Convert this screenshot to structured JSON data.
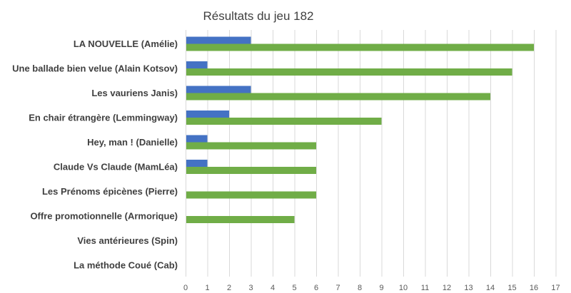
{
  "chart_data": {
    "type": "bar",
    "orientation": "horizontal",
    "title": "Résultats du jeu 182",
    "xlabel": "",
    "ylabel": "",
    "categories": [
      "LA NOUVELLE (Amélie)",
      "Une ballade bien velue (Alain Kotsov)",
      "Les vauriens Janis)",
      "En chair étrangère (Lemmingway)",
      "Hey, man ! (Danielle)",
      "Claude Vs Claude (MamLéa)",
      "Les Prénoms épicènes (Pierre)",
      "Offre promotionnelle (Armorique)",
      "Vies antérieures (Spin)",
      "La méthode Coué (Cab)"
    ],
    "series": [
      {
        "color": "#4472C4",
        "values": [
          3,
          1,
          3,
          2,
          1,
          1,
          0,
          0,
          0,
          0
        ]
      },
      {
        "color": "#70AD47",
        "values": [
          16,
          15,
          14,
          9,
          6,
          6,
          6,
          5,
          0,
          0
        ]
      }
    ],
    "xlim": [
      0,
      17
    ],
    "xticks": [
      "0",
      "1",
      "2",
      "3",
      "4",
      "5",
      "6",
      "7",
      "8",
      "9",
      "10",
      "11",
      "12",
      "13",
      "14",
      "15",
      "16",
      "17"
    ],
    "grid": "vertical",
    "legend": "none"
  }
}
